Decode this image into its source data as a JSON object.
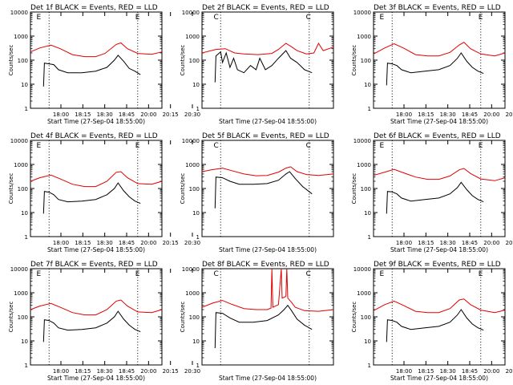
{
  "chart_data": {
    "type": "line",
    "yscale": "log",
    "ylim": [
      1,
      10000
    ],
    "ytick_labels": [
      "1",
      "10",
      "100",
      "1000",
      "10000"
    ],
    "xtick_labels": [
      "18:00",
      "18:15",
      "18:30",
      "18:45",
      "20:00",
      "20:15",
      "20:30"
    ],
    "xlabel": "Start Time (27-Sep-04 18:55:00)",
    "ylabel": "Counts/sec",
    "colors": {
      "events": "#000000",
      "lld": "#e00000"
    },
    "panels": [
      {
        "title": "Det 1f BLACK = Events, RED = LLD",
        "markers": [
          {
            "label": "E",
            "t": 9
          },
          {
            "label": "E",
            "t": 115
          }
        ],
        "lld": [
          [
            0,
            220
          ],
          [
            10,
            320
          ],
          [
            22,
            420
          ],
          [
            32,
            300
          ],
          [
            45,
            170
          ],
          [
            58,
            140
          ],
          [
            70,
            140
          ],
          [
            80,
            190
          ],
          [
            92,
            450
          ],
          [
            97,
            520
          ],
          [
            104,
            300
          ],
          [
            115,
            190
          ],
          [
            130,
            175
          ],
          [
            141,
            220
          ]
        ],
        "events": [
          [
            14,
            8
          ],
          [
            15,
            75
          ],
          [
            20,
            70
          ],
          [
            25,
            65
          ],
          [
            30,
            40
          ],
          [
            40,
            30
          ],
          [
            55,
            30
          ],
          [
            70,
            35
          ],
          [
            82,
            50
          ],
          [
            90,
            100
          ],
          [
            94,
            160
          ],
          [
            100,
            90
          ],
          [
            106,
            45
          ],
          [
            112,
            35
          ],
          [
            118,
            25
          ]
        ]
      },
      {
        "title": "Det 2f BLACK = Events, RED = LLD",
        "markers": [
          {
            "label": "C",
            "t": 15
          },
          {
            "label": "C",
            "t": 114
          }
        ],
        "lld": [
          [
            0,
            200
          ],
          [
            15,
            280
          ],
          [
            25,
            300
          ],
          [
            35,
            200
          ],
          [
            45,
            180
          ],
          [
            60,
            170
          ],
          [
            75,
            190
          ],
          [
            82,
            280
          ],
          [
            90,
            500
          ],
          [
            95,
            380
          ],
          [
            102,
            250
          ],
          [
            112,
            180
          ],
          [
            120,
            200
          ],
          [
            125,
            500
          ],
          [
            130,
            250
          ],
          [
            141,
            350
          ]
        ],
        "events": [
          [
            14,
            12
          ],
          [
            15,
            150
          ],
          [
            20,
            220
          ],
          [
            22,
            80
          ],
          [
            26,
            200
          ],
          [
            30,
            50
          ],
          [
            34,
            120
          ],
          [
            38,
            40
          ],
          [
            45,
            30
          ],
          [
            52,
            60
          ],
          [
            58,
            40
          ],
          [
            62,
            120
          ],
          [
            68,
            40
          ],
          [
            75,
            60
          ],
          [
            82,
            120
          ],
          [
            90,
            250
          ],
          [
            95,
            120
          ],
          [
            102,
            80
          ],
          [
            110,
            40
          ],
          [
            118,
            30
          ]
        ]
      },
      {
        "title": "Det 3f BLACK = Events, RED = LLD",
        "markers": [
          {
            "label": "E",
            "t": 9
          },
          {
            "label": "E",
            "t": 115
          }
        ],
        "lld": [
          [
            0,
            180
          ],
          [
            12,
            320
          ],
          [
            22,
            480
          ],
          [
            32,
            320
          ],
          [
            45,
            170
          ],
          [
            58,
            150
          ],
          [
            70,
            150
          ],
          [
            82,
            210
          ],
          [
            92,
            430
          ],
          [
            97,
            550
          ],
          [
            104,
            300
          ],
          [
            115,
            180
          ],
          [
            130,
            150
          ],
          [
            141,
            200
          ]
        ],
        "events": [
          [
            14,
            9
          ],
          [
            15,
            75
          ],
          [
            20,
            70
          ],
          [
            25,
            60
          ],
          [
            30,
            40
          ],
          [
            40,
            30
          ],
          [
            55,
            35
          ],
          [
            70,
            40
          ],
          [
            82,
            60
          ],
          [
            90,
            120
          ],
          [
            94,
            200
          ],
          [
            100,
            90
          ],
          [
            106,
            50
          ],
          [
            112,
            35
          ],
          [
            118,
            28
          ]
        ]
      },
      {
        "title": "Det 4f BLACK = Events, RED = LLD",
        "markers": [
          {
            "label": "E",
            "t": 9
          },
          {
            "label": "E",
            "t": 115
          }
        ],
        "lld": [
          [
            0,
            200
          ],
          [
            10,
            280
          ],
          [
            22,
            360
          ],
          [
            32,
            250
          ],
          [
            45,
            150
          ],
          [
            58,
            120
          ],
          [
            70,
            120
          ],
          [
            82,
            200
          ],
          [
            92,
            470
          ],
          [
            97,
            500
          ],
          [
            104,
            280
          ],
          [
            115,
            160
          ],
          [
            130,
            150
          ],
          [
            141,
            200
          ]
        ],
        "events": [
          [
            14,
            9
          ],
          [
            15,
            75
          ],
          [
            20,
            70
          ],
          [
            25,
            55
          ],
          [
            30,
            35
          ],
          [
            40,
            28
          ],
          [
            55,
            30
          ],
          [
            70,
            35
          ],
          [
            82,
            55
          ],
          [
            90,
            100
          ],
          [
            94,
            170
          ],
          [
            100,
            80
          ],
          [
            106,
            45
          ],
          [
            112,
            30
          ],
          [
            118,
            24
          ]
        ]
      },
      {
        "title": "Det 5f BLACK = Events, RED = LLD",
        "markers": [
          {
            "label": "C",
            "t": 15
          },
          {
            "label": "C",
            "t": 114
          }
        ],
        "lld": [
          [
            0,
            500
          ],
          [
            10,
            600
          ],
          [
            22,
            700
          ],
          [
            32,
            550
          ],
          [
            45,
            400
          ],
          [
            58,
            340
          ],
          [
            70,
            350
          ],
          [
            82,
            480
          ],
          [
            90,
            700
          ],
          [
            95,
            800
          ],
          [
            102,
            500
          ],
          [
            112,
            380
          ],
          [
            125,
            350
          ],
          [
            141,
            400
          ]
        ],
        "events": [
          [
            14,
            15
          ],
          [
            15,
            300
          ],
          [
            22,
            280
          ],
          [
            30,
            200
          ],
          [
            40,
            150
          ],
          [
            55,
            150
          ],
          [
            70,
            160
          ],
          [
            82,
            220
          ],
          [
            90,
            400
          ],
          [
            94,
            500
          ],
          [
            100,
            260
          ],
          [
            108,
            120
          ],
          [
            118,
            60
          ]
        ]
      },
      {
        "title": "Det 6f BLACK = Events, RED = LLD",
        "markers": [
          {
            "label": "E",
            "t": 9
          },
          {
            "label": "E",
            "t": 115
          }
        ],
        "lld": [
          [
            0,
            350
          ],
          [
            12,
            480
          ],
          [
            22,
            620
          ],
          [
            32,
            450
          ],
          [
            45,
            300
          ],
          [
            58,
            240
          ],
          [
            70,
            240
          ],
          [
            82,
            330
          ],
          [
            92,
            600
          ],
          [
            97,
            680
          ],
          [
            104,
            420
          ],
          [
            115,
            250
          ],
          [
            130,
            210
          ],
          [
            141,
            280
          ]
        ],
        "events": [
          [
            14,
            9
          ],
          [
            15,
            75
          ],
          [
            20,
            72
          ],
          [
            25,
            60
          ],
          [
            30,
            40
          ],
          [
            40,
            30
          ],
          [
            55,
            35
          ],
          [
            70,
            40
          ],
          [
            82,
            60
          ],
          [
            90,
            110
          ],
          [
            94,
            180
          ],
          [
            100,
            90
          ],
          [
            106,
            50
          ],
          [
            112,
            35
          ],
          [
            118,
            28
          ]
        ]
      },
      {
        "title": "Det 7f BLACK = Events, RED = LLD",
        "markers": [
          {
            "label": "E",
            "t": 9
          },
          {
            "label": "E",
            "t": 115
          }
        ],
        "lld": [
          [
            0,
            200
          ],
          [
            10,
            280
          ],
          [
            22,
            360
          ],
          [
            32,
            250
          ],
          [
            45,
            150
          ],
          [
            58,
            120
          ],
          [
            70,
            120
          ],
          [
            82,
            200
          ],
          [
            92,
            450
          ],
          [
            97,
            500
          ],
          [
            104,
            280
          ],
          [
            115,
            160
          ],
          [
            130,
            150
          ],
          [
            141,
            200
          ]
        ],
        "events": [
          [
            14,
            9
          ],
          [
            15,
            75
          ],
          [
            20,
            70
          ],
          [
            25,
            55
          ],
          [
            30,
            35
          ],
          [
            40,
            28
          ],
          [
            55,
            30
          ],
          [
            70,
            35
          ],
          [
            82,
            55
          ],
          [
            90,
            100
          ],
          [
            94,
            170
          ],
          [
            100,
            80
          ],
          [
            106,
            45
          ],
          [
            112,
            30
          ],
          [
            118,
            24
          ]
        ]
      },
      {
        "title": "Det 8f BLACK = Events, RED = LLD",
        "markers": [
          {
            "label": "C",
            "t": 15
          },
          {
            "label": "C",
            "t": 114
          }
        ],
        "lld": [
          [
            0,
            250
          ],
          [
            12,
            380
          ],
          [
            22,
            480
          ],
          [
            32,
            330
          ],
          [
            45,
            220
          ],
          [
            58,
            200
          ],
          [
            70,
            200
          ],
          [
            74,
            230
          ],
          [
            75,
            10000
          ],
          [
            76,
            250
          ],
          [
            82,
            320
          ],
          [
            85,
            10000
          ],
          [
            86,
            600
          ],
          [
            90,
            700
          ],
          [
            91,
            10000
          ],
          [
            92,
            600
          ],
          [
            96,
            400
          ],
          [
            100,
            250
          ],
          [
            110,
            180
          ],
          [
            125,
            170
          ],
          [
            141,
            200
          ]
        ],
        "events": [
          [
            14,
            5
          ],
          [
            15,
            150
          ],
          [
            22,
            140
          ],
          [
            30,
            90
          ],
          [
            40,
            60
          ],
          [
            55,
            60
          ],
          [
            70,
            70
          ],
          [
            82,
            120
          ],
          [
            88,
            200
          ],
          [
            92,
            300
          ],
          [
            96,
            180
          ],
          [
            102,
            80
          ],
          [
            110,
            45
          ],
          [
            118,
            30
          ]
        ]
      },
      {
        "title": "Det 9f BLACK = Events, RED = LLD",
        "markers": [
          {
            "label": "E",
            "t": 9
          },
          {
            "label": "E",
            "t": 115
          }
        ],
        "lld": [
          [
            0,
            180
          ],
          [
            12,
            320
          ],
          [
            22,
            450
          ],
          [
            32,
            300
          ],
          [
            45,
            170
          ],
          [
            58,
            150
          ],
          [
            70,
            150
          ],
          [
            82,
            220
          ],
          [
            92,
            500
          ],
          [
            97,
            550
          ],
          [
            104,
            320
          ],
          [
            115,
            190
          ],
          [
            130,
            150
          ],
          [
            141,
            190
          ]
        ],
        "events": [
          [
            14,
            9
          ],
          [
            15,
            75
          ],
          [
            20,
            70
          ],
          [
            25,
            60
          ],
          [
            30,
            40
          ],
          [
            40,
            30
          ],
          [
            55,
            35
          ],
          [
            70,
            40
          ],
          [
            82,
            60
          ],
          [
            90,
            120
          ],
          [
            94,
            200
          ],
          [
            100,
            90
          ],
          [
            106,
            50
          ],
          [
            112,
            35
          ],
          [
            118,
            28
          ]
        ]
      }
    ]
  }
}
